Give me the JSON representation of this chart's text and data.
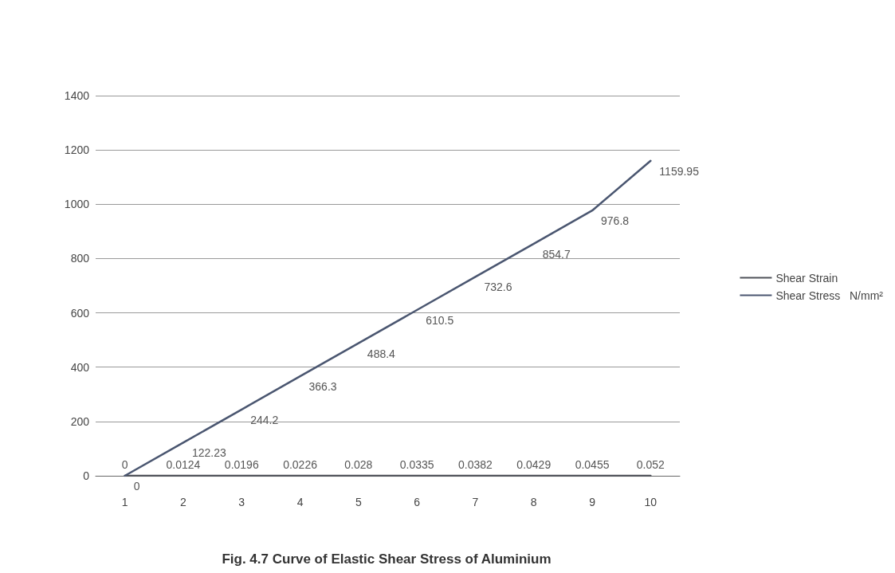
{
  "chart_data": {
    "type": "line",
    "title": "Fig. 4.7 Curve of Elastic Shear Stress of Aluminium",
    "categories": [
      "1",
      "2",
      "3",
      "4",
      "5",
      "6",
      "7",
      "8",
      "9",
      "10"
    ],
    "series": [
      {
        "name": "Shear Strain",
        "color": "#4f5259",
        "values": [
          0,
          0.0124,
          0.0196,
          0.0226,
          0.028,
          0.0335,
          0.0382,
          0.0429,
          0.0455,
          0.052
        ]
      },
      {
        "name": "Shear Stress   N/mm²",
        "color": "#4a5670",
        "values": [
          0,
          122.23,
          244.2,
          366.3,
          488.4,
          610.5,
          732.6,
          854.7,
          976.8,
          1159.95
        ]
      }
    ],
    "ylim": [
      0,
      1400
    ],
    "yticks": [
      0,
      200,
      400,
      600,
      800,
      1000,
      1200,
      1400
    ],
    "grid": "y",
    "legend": "right",
    "data_labels": true,
    "marker": "none",
    "line_style": "solid"
  }
}
